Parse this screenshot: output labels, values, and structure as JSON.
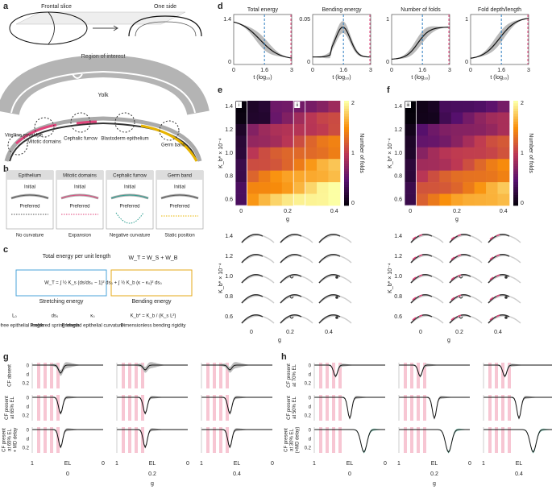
{
  "a": {
    "label": "a",
    "frontal_slice": "Frontal slice",
    "one_side": "One side",
    "region": "Region of interest",
    "yolk": "Yolk",
    "tags": [
      "Vitelline envelope",
      "Mitotic domains",
      "Cephalic furrow",
      "Blastoderm epithelium",
      "Germ band"
    ]
  },
  "b": {
    "label": "b",
    "columns": [
      {
        "header": "Epithelium",
        "initial": "Initial",
        "preferred": "Preferred",
        "caption": "No curvature"
      },
      {
        "header": "Mitotic domains",
        "initial": "Initial",
        "preferred": "Preferred",
        "caption": "Expansion"
      },
      {
        "header": "Cephalic furrow",
        "initial": "Initial",
        "preferred": "Preferred",
        "caption": "Negative curvature"
      },
      {
        "header": "Germ band",
        "initial": "Initial",
        "preferred": "Preferred",
        "caption": "Static position"
      }
    ]
  },
  "c": {
    "label": "c",
    "total_title": "Total energy per unit length",
    "sum": "W_T = W_S + W_B",
    "formula": "W_T = ∫ ½ K_s (ds/ds₀ − 1)² ds₀ + ∫ ½ K_b (κ − κ₀)² ds₀",
    "stretching": "Stretching energy",
    "bending": "Bending energy",
    "defs": [
      {
        "sym": "L₀",
        "text": "Stress-free epithelial length"
      },
      {
        "sym": "ds₀",
        "text": "Preferred spring length"
      },
      {
        "sym": "κ₀",
        "text": "Preferred epithelial curvature"
      },
      {
        "sym": "K_b* = K_b / (K_s L²)",
        "text": "Dimensionless bending rigidity"
      }
    ]
  },
  "d": {
    "label": "d",
    "panels": [
      {
        "title": "Total energy",
        "yticks": [
          "1.4",
          "0"
        ]
      },
      {
        "title": "Bending energy",
        "yticks": [
          "0.05",
          "0"
        ]
      },
      {
        "title": "Number of folds",
        "yticks": [
          "1",
          "0"
        ]
      },
      {
        "title": "Fold depth/length",
        "yticks": [
          "1",
          "0"
        ]
      }
    ],
    "xticks": [
      "0",
      "1.6",
      "3"
    ],
    "xlabel": "t (log₁₀)"
  },
  "e": {
    "label": "e",
    "boxes": [
      "i",
      "ii"
    ]
  },
  "f": {
    "label": "f",
    "boxes": [
      "iii"
    ]
  },
  "heatmap": {
    "yticks": [
      "1.4",
      "1.2",
      "1.0",
      "0.8",
      "0.6"
    ],
    "xticks": [
      "0",
      "0.2",
      "0.4"
    ],
    "xlabel": "g",
    "ylabel": "K_b* × 10⁻⁴",
    "cbar_ticks": [
      "2",
      "1",
      "0"
    ],
    "cbar_label": "Number of folds"
  },
  "g": {
    "label": "g",
    "rows": [
      [
        "CF absent"
      ],
      [
        "CF present",
        "at 65% EL"
      ],
      [
        "CF present",
        "at 65% EL",
        "+ MD delay"
      ]
    ]
  },
  "h": {
    "label": "h",
    "rows": [
      [
        "CF present",
        "at 70% EL"
      ],
      [
        "CF present",
        "at 50% EL"
      ],
      [
        "CF present",
        "at 30% EL",
        "(+MD delay)"
      ]
    ]
  },
  "profile": {
    "dticks": [
      "0",
      "d",
      "0.2"
    ],
    "xticks": [
      "1",
      "EL",
      "0"
    ],
    "columns": [
      "0",
      "0.2",
      "0.4"
    ],
    "xlabel": "g"
  }
}
